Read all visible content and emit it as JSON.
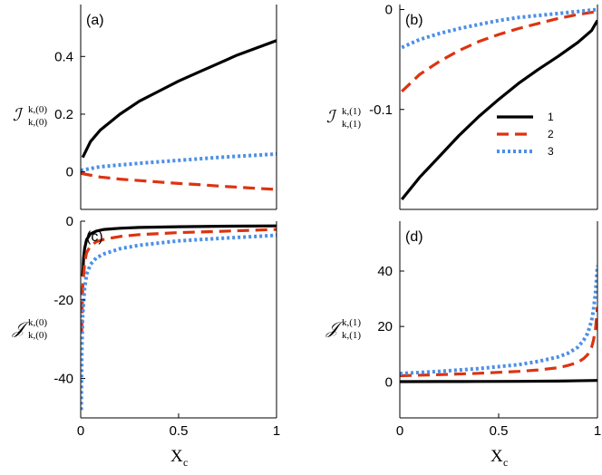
{
  "legend": {
    "entries": [
      {
        "label": "1",
        "color": "#000000",
        "dash": "solid"
      },
      {
        "label": "2",
        "color": "#dd3311",
        "dash": "dashed"
      },
      {
        "label": "3",
        "color": "#4c8fe6",
        "dash": "dotted"
      }
    ]
  },
  "chart_data": [
    {
      "id": "a",
      "panel_label": "(a)",
      "type": "line",
      "ylabel_main": "ℐ",
      "ylabel_sup": "k,(0)",
      "ylabel_sub": "k,(0)",
      "xlabel_main": "",
      "xlabel_sub": "",
      "xlim": [
        0,
        1
      ],
      "ylim": [
        -0.13,
        0.58
      ],
      "xticks": [],
      "yticks": [
        {
          "v": 0,
          "t": "0"
        },
        {
          "v": 0.2,
          "t": "0.2"
        },
        {
          "v": 0.4,
          "t": "0.4"
        }
      ],
      "series": [
        {
          "name": "1",
          "x": [
            0.01,
            0.05,
            0.1,
            0.2,
            0.3,
            0.4,
            0.5,
            0.6,
            0.7,
            0.8,
            0.9,
            1.0
          ],
          "y": [
            0.05,
            0.105,
            0.145,
            0.2,
            0.245,
            0.28,
            0.315,
            0.345,
            0.375,
            0.405,
            0.43,
            0.455
          ]
        },
        {
          "name": "2",
          "x": [
            0,
            0.1,
            0.2,
            0.3,
            0.4,
            0.5,
            0.6,
            0.7,
            0.8,
            0.9,
            1.0
          ],
          "y": [
            -0.005,
            -0.018,
            -0.025,
            -0.03,
            -0.035,
            -0.04,
            -0.044,
            -0.049,
            -0.053,
            -0.057,
            -0.061
          ]
        },
        {
          "name": "3",
          "x": [
            0,
            0.1,
            0.2,
            0.3,
            0.4,
            0.5,
            0.6,
            0.7,
            0.8,
            0.9,
            1.0
          ],
          "y": [
            0.005,
            0.018,
            0.024,
            0.03,
            0.035,
            0.04,
            0.045,
            0.05,
            0.054,
            0.058,
            0.062
          ]
        }
      ]
    },
    {
      "id": "b",
      "panel_label": "(b)",
      "type": "line",
      "ylabel_main": "ℐ",
      "ylabel_sup": "k,(1)",
      "ylabel_sub": "k,(1)",
      "xlabel_main": "",
      "xlabel_sub": "",
      "xlim": [
        0,
        1
      ],
      "ylim": [
        -0.2,
        0.005
      ],
      "xticks": [],
      "yticks": [
        {
          "v": 0,
          "t": "0"
        },
        {
          "v": -0.1,
          "t": "-0.1"
        }
      ],
      "series": [
        {
          "name": "1",
          "x": [
            0.01,
            0.1,
            0.2,
            0.3,
            0.4,
            0.5,
            0.6,
            0.7,
            0.8,
            0.9,
            0.97,
            1.0
          ],
          "y": [
            -0.19,
            -0.168,
            -0.147,
            -0.126,
            -0.107,
            -0.09,
            -0.074,
            -0.06,
            -0.047,
            -0.033,
            -0.021,
            -0.011
          ]
        },
        {
          "name": "2",
          "x": [
            0.01,
            0.1,
            0.2,
            0.3,
            0.4,
            0.5,
            0.6,
            0.7,
            0.8,
            0.9,
            1.0
          ],
          "y": [
            -0.082,
            -0.065,
            -0.052,
            -0.041,
            -0.032,
            -0.025,
            -0.019,
            -0.014,
            -0.009,
            -0.005,
            -0.002
          ]
        },
        {
          "name": "3",
          "x": [
            0.01,
            0.1,
            0.2,
            0.3,
            0.4,
            0.5,
            0.6,
            0.7,
            0.8,
            0.9,
            1.0
          ],
          "y": [
            -0.038,
            -0.03,
            -0.024,
            -0.019,
            -0.015,
            -0.011,
            -0.008,
            -0.006,
            -0.004,
            -0.002,
            0.0
          ]
        }
      ]
    },
    {
      "id": "c",
      "panel_label": "(c)",
      "type": "line",
      "ylabel_main": "𝒥",
      "ylabel_sup": "k,(0)",
      "ylabel_sub": "k,(0)",
      "xlabel_main": "X",
      "xlabel_sub": "c",
      "xlim": [
        0,
        1
      ],
      "ylim": [
        -50,
        0
      ],
      "xticks": [
        {
          "v": 0,
          "t": "0"
        },
        {
          "v": 0.5,
          "t": "0.5"
        },
        {
          "v": 1,
          "t": "1"
        }
      ],
      "yticks": [
        {
          "v": 0,
          "t": "0"
        },
        {
          "v": -20,
          "t": "-20"
        },
        {
          "v": -40,
          "t": "-40"
        }
      ],
      "series": [
        {
          "name": "1",
          "x": [
            0.01,
            0.015,
            0.02,
            0.03,
            0.05,
            0.08,
            0.12,
            0.2,
            0.3,
            0.5,
            0.7,
            1.0
          ],
          "y": [
            -14,
            -9.3,
            -7,
            -4.7,
            -3.2,
            -2.5,
            -2.1,
            -1.8,
            -1.6,
            -1.4,
            -1.3,
            -1.2
          ]
        },
        {
          "name": "2",
          "x": [
            0.005,
            0.01,
            0.02,
            0.03,
            0.05,
            0.08,
            0.12,
            0.2,
            0.3,
            0.5,
            0.7,
            1.0
          ],
          "y": [
            -28,
            -17,
            -10.5,
            -8,
            -6.3,
            -5.2,
            -4.6,
            -3.9,
            -3.4,
            -2.9,
            -2.6,
            -2.1
          ]
        },
        {
          "name": "3",
          "x": [
            0.003,
            0.006,
            0.01,
            0.02,
            0.03,
            0.05,
            0.08,
            0.12,
            0.2,
            0.3,
            0.5,
            0.7,
            1.0
          ],
          "y": [
            -48,
            -32,
            -24,
            -17,
            -13.5,
            -11,
            -9.3,
            -8.3,
            -7,
            -6.1,
            -5,
            -4.4,
            -3.6
          ]
        }
      ]
    },
    {
      "id": "d",
      "panel_label": "(d)",
      "type": "line",
      "ylabel_main": "𝒥",
      "ylabel_sup": "k,(1)",
      "ylabel_sub": "k,(1)",
      "xlabel_main": "X",
      "xlabel_sub": "c",
      "xlim": [
        0,
        1
      ],
      "ylim": [
        -13,
        58
      ],
      "xticks": [
        {
          "v": 0,
          "t": "0"
        },
        {
          "v": 0.5,
          "t": "0.5"
        },
        {
          "v": 1,
          "t": "1"
        }
      ],
      "yticks": [
        {
          "v": 0,
          "t": "0"
        },
        {
          "v": 20,
          "t": "20"
        },
        {
          "v": 40,
          "t": "40"
        }
      ],
      "series": [
        {
          "name": "1",
          "x": [
            0,
            0.2,
            0.4,
            0.6,
            0.8,
            1.0
          ],
          "y": [
            0.1,
            0.12,
            0.15,
            0.2,
            0.3,
            0.5
          ]
        },
        {
          "name": "2",
          "x": [
            0,
            0.2,
            0.4,
            0.6,
            0.7,
            0.8,
            0.85,
            0.9,
            0.93,
            0.95,
            0.97,
            0.98,
            0.99,
            1.0
          ],
          "y": [
            2.2,
            2.6,
            3.1,
            3.8,
            4.3,
            5.1,
            5.9,
            7,
            8.4,
            9.8,
            12.5,
            15,
            19,
            27
          ]
        },
        {
          "name": "3",
          "x": [
            0,
            0.2,
            0.4,
            0.6,
            0.7,
            0.8,
            0.85,
            0.9,
            0.93,
            0.95,
            0.97,
            0.98,
            0.99,
            1.0
          ],
          "y": [
            3,
            3.8,
            4.8,
            6.2,
            7.4,
            9,
            10.3,
            12.5,
            15,
            17.5,
            22,
            26,
            32,
            42
          ]
        }
      ]
    }
  ]
}
